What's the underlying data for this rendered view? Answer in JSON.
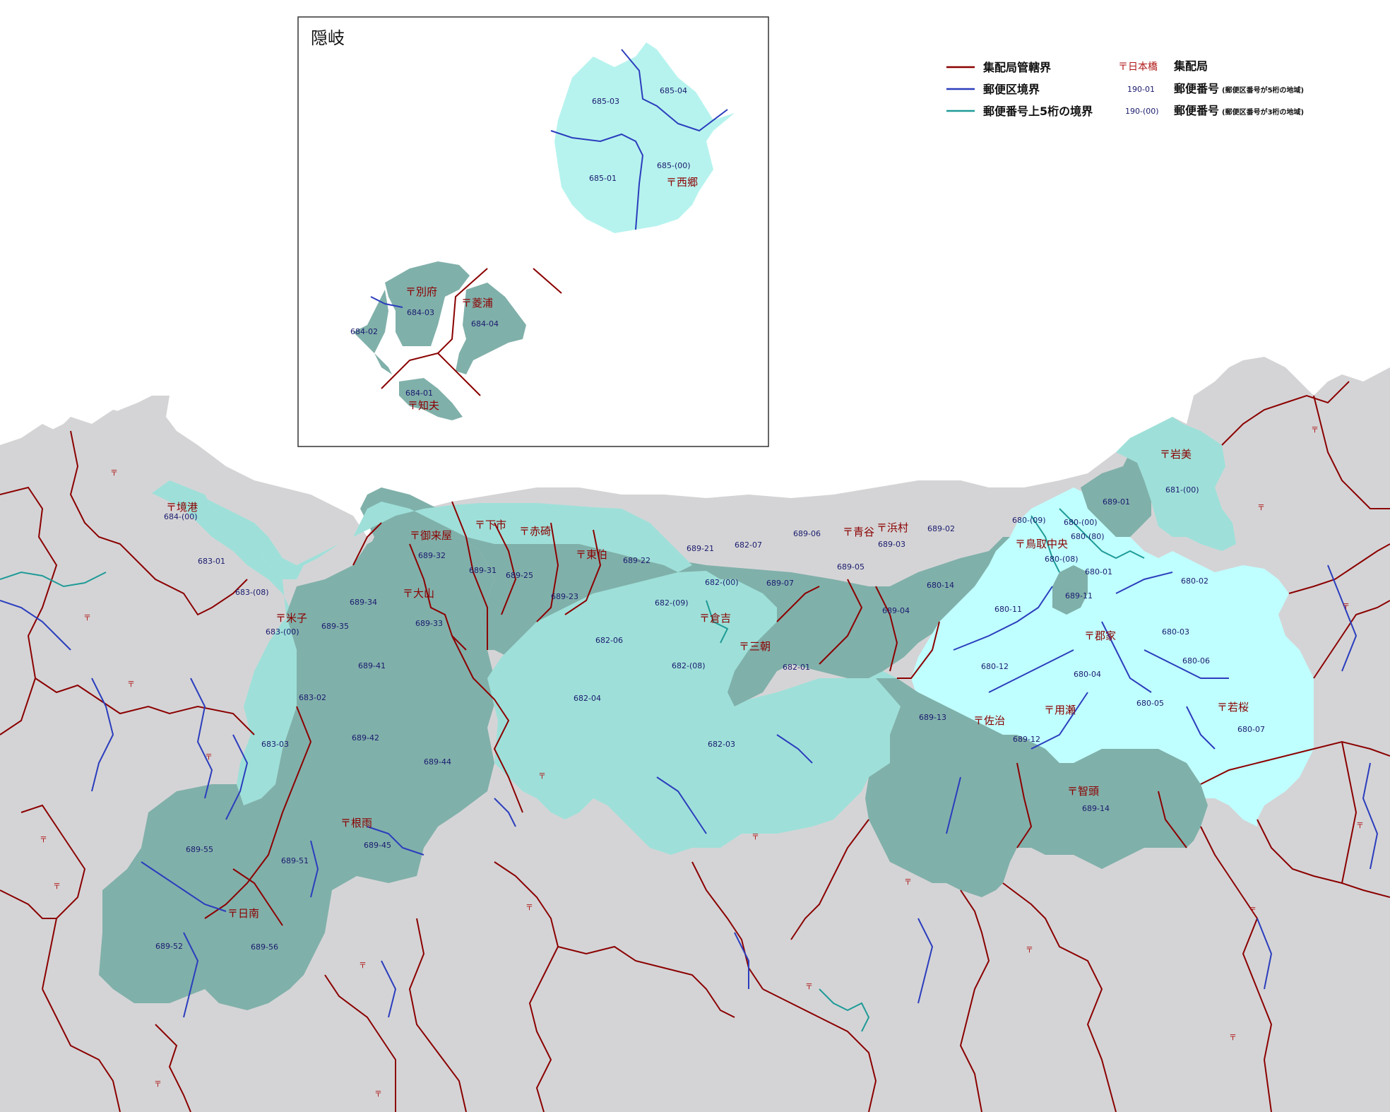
{
  "colors": {
    "sea": "#ffffff",
    "land_outside": "#d4d4d6",
    "zone_dark": "#80b0aa",
    "zone_medium": "#9ee0d9",
    "zone_light": "#c0ffff",
    "zone_cyan": "#b6f3ff",
    "boundary_office": "#8b0000",
    "boundary_district": "#2b3dbd",
    "boundary_prefix5": "#1f9b97",
    "text_office": "#8b0000",
    "text_code": "#1a1a6e"
  },
  "inset": {
    "title": "隠岐",
    "offices": [
      "西郷",
      "別府",
      "菱浦",
      "知夫"
    ],
    "codes": [
      "685-03",
      "685-04",
      "685-01",
      "685-(00)",
      "684-03",
      "684-02",
      "684-04",
      "684-01"
    ]
  },
  "legend": {
    "lines": [
      {
        "label": "集配局管轄界",
        "color": "#8b0000"
      },
      {
        "label": "郵便区境界",
        "color": "#2b3dbd"
      },
      {
        "label": "郵便番号上5桁の境界",
        "color": "#1f9b97"
      }
    ],
    "symbols": [
      {
        "sample": "〒日本橋",
        "label": "集配局",
        "note": ""
      },
      {
        "sample": "190-01",
        "label": "郵便番号",
        "note": "(郵便区番号が5桁の地域)"
      },
      {
        "sample": "190-(00)",
        "label": "郵便番号",
        "note": "(郵便区番号が3桁の地域)"
      }
    ]
  },
  "offices": [
    "境港",
    "米子",
    "御来屋",
    "下市",
    "赤碕",
    "東伯",
    "大山",
    "倉吉",
    "三朝",
    "青谷",
    "浜村",
    "鳥取中央",
    "郡家",
    "岩美",
    "若桜",
    "用瀬",
    "佐治",
    "智頭",
    "根雨",
    "日南"
  ],
  "codes": [
    "684-(00)",
    "683-01",
    "683-(08)",
    "683-(00)",
    "683-02",
    "683-03",
    "689-34",
    "689-35",
    "689-41",
    "689-42",
    "689-44",
    "689-45",
    "689-51",
    "689-55",
    "689-52",
    "689-56",
    "689-32",
    "689-31",
    "689-25",
    "689-23",
    "689-33",
    "689-22",
    "689-21",
    "682-07",
    "682-(00)",
    "682-(09)",
    "682-06",
    "682-04",
    "682-(08)",
    "682-03",
    "682-01",
    "689-06",
    "689-07",
    "689-05",
    "689-03",
    "689-02",
    "689-04",
    "680-(09)",
    "680-(00)",
    "680-(80)",
    "680-(08)",
    "680-14",
    "680-11",
    "680-12",
    "680-01",
    "680-02",
    "680-03",
    "680-04",
    "680-05",
    "680-06",
    "680-07",
    "689-11",
    "689-01",
    "681-(00)",
    "689-13",
    "689-12",
    "689-14"
  ]
}
